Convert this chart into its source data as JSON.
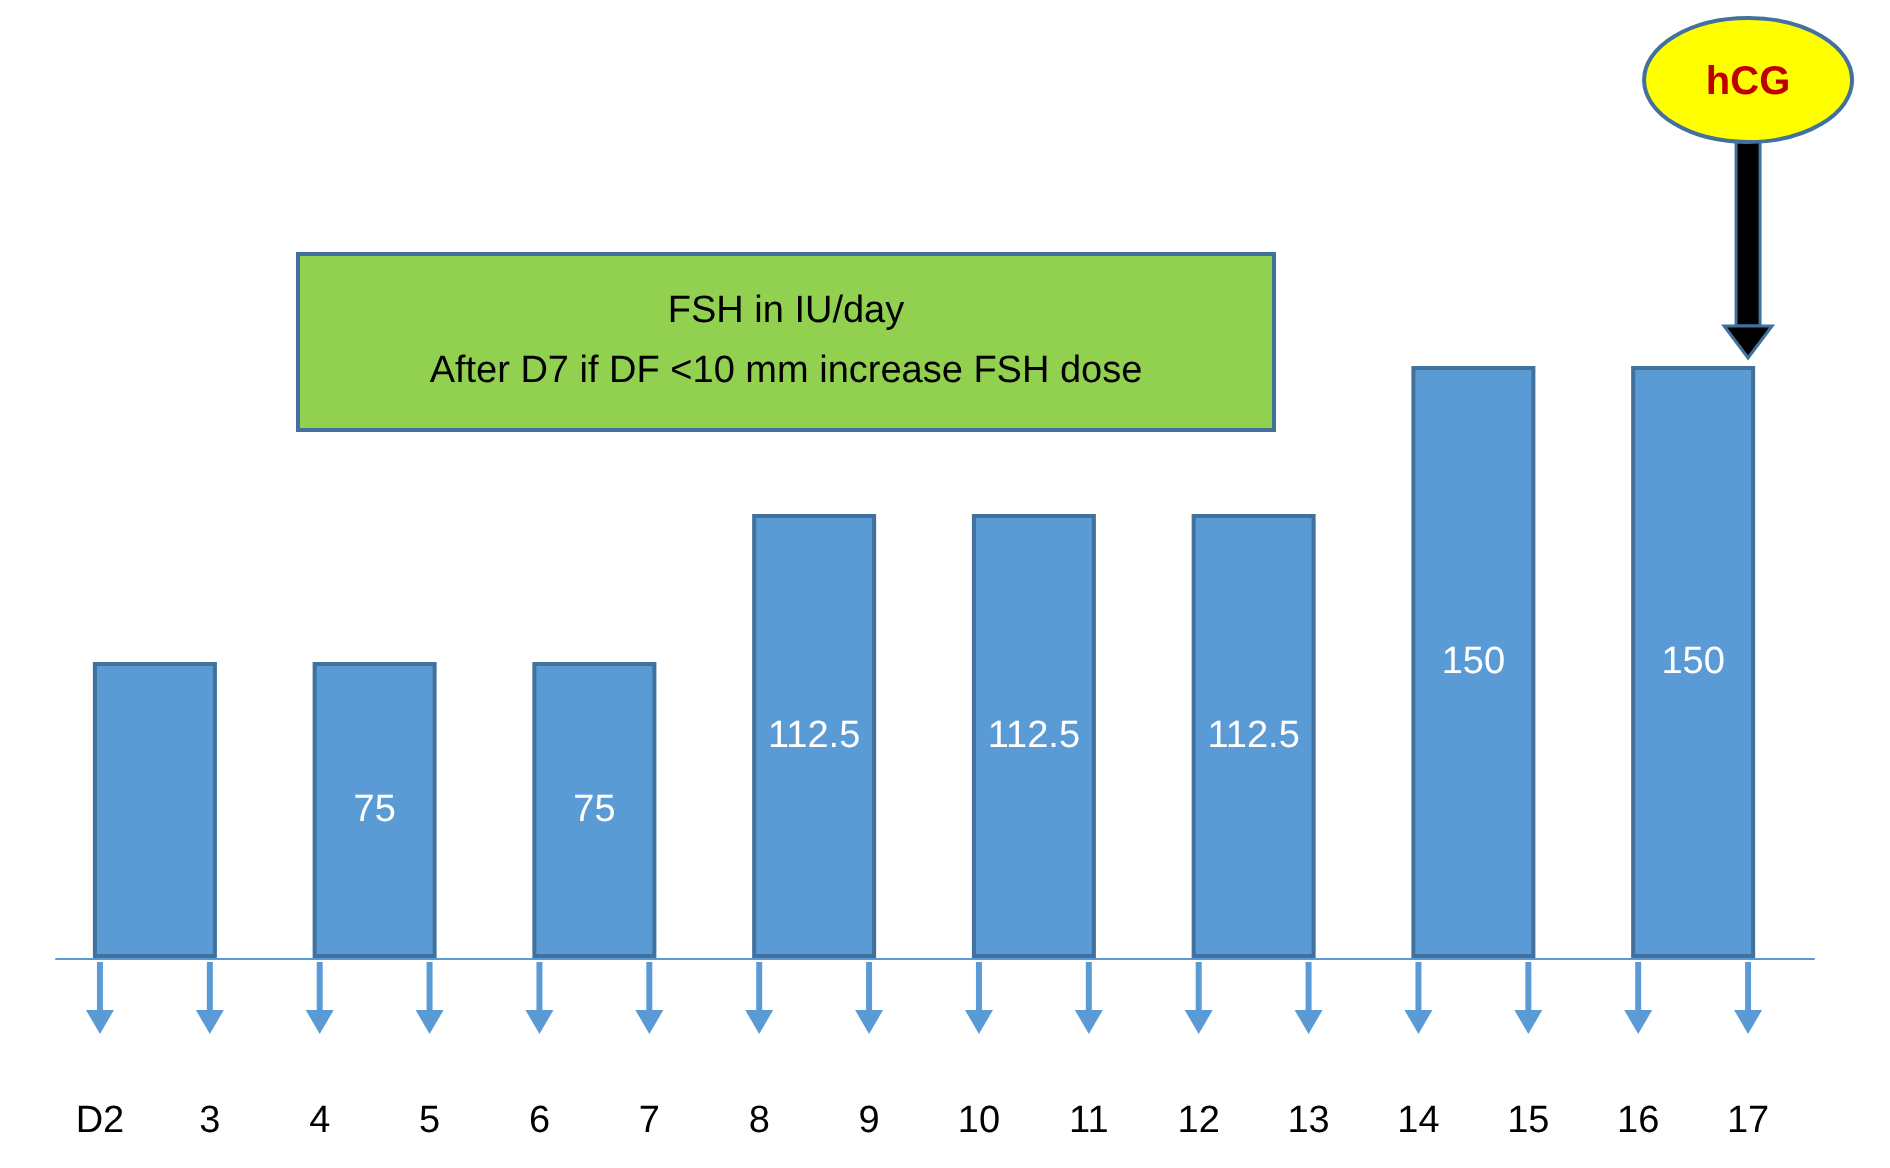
{
  "chart_data": {
    "type": "bar",
    "x": [
      2.5,
      4.5,
      6.5,
      8.5,
      10.5,
      12.5,
      14.5,
      16.5
    ],
    "values": [
      75,
      75,
      75,
      112.5,
      112.5,
      112.5,
      150,
      150
    ],
    "value_labels": [
      null,
      "75",
      "75",
      "112.5",
      "112.5",
      "112.5",
      "150",
      "150"
    ],
    "color": "#5b9bd5",
    "xlim": [
      1.6,
      17.6
    ],
    "xticks": [
      {
        "value": 2,
        "label": "D2"
      },
      3,
      4,
      5,
      6,
      7,
      8,
      9,
      10,
      11,
      12,
      13,
      14,
      15,
      16,
      17
    ],
    "annotations": [
      "FSH in IU/day\nAfter D7 if DF <10 mm increase FSH dose",
      "hCG"
    ]
  }
}
